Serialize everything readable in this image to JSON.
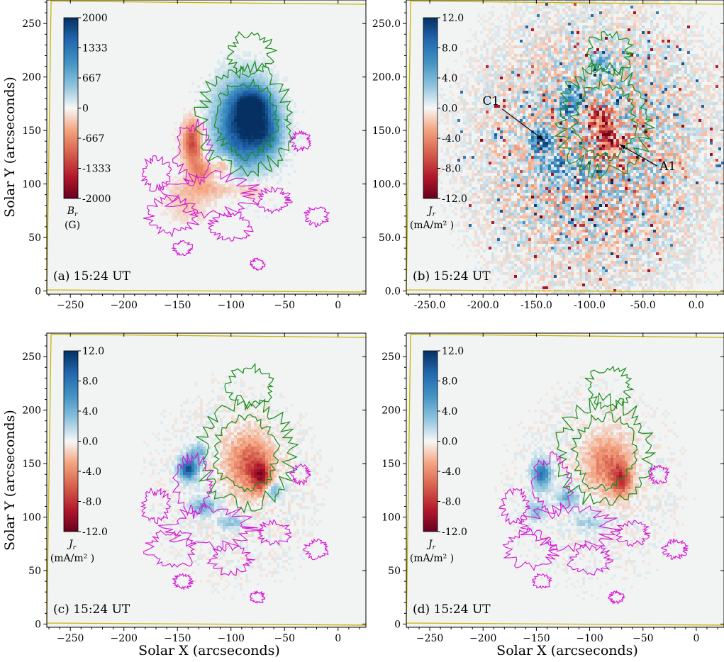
{
  "figure": {
    "x_axis_label": "Solar X (arcseconds)",
    "y_axis_label": "Solar Y (arcseconds)"
  },
  "chart_data": [
    {
      "type": "heatmap",
      "panel": "a",
      "annotation": "(a) 15:24 UT",
      "quantity": "B_r",
      "xlabel": "",
      "ylabel": "Solar Y (arcseconds)",
      "xlim": [
        -272,
        26
      ],
      "ylim": [
        -3,
        272
      ],
      "x_ticks": [
        -250,
        -200,
        -150,
        -100,
        -50,
        0
      ],
      "x_tick_labels": [
        "−250",
        "−200",
        "−150",
        "−100",
        "−50",
        "0"
      ],
      "y_ticks": [
        0,
        50,
        100,
        150,
        200,
        250
      ],
      "y_tick_labels": [
        "0",
        "50",
        "100",
        "150",
        "200",
        "250"
      ],
      "colorbar": {
        "range": [
          -2000,
          2000
        ],
        "tick_labels": [
          "2000",
          "1333",
          "667",
          "0",
          "-667",
          "-1333",
          "-2000"
        ],
        "label": "B_r",
        "unit": "(G)"
      },
      "cmap": "RdBu",
      "contours": [
        "positive polarity (green)",
        "negative polarity (magenta)"
      ],
      "blobs": [
        {
          "x": -88,
          "y": 155,
          "sx": 17,
          "sy": 26,
          "v": 1.0
        },
        {
          "x": -78,
          "y": 175,
          "sx": 12,
          "sy": 10,
          "v": 0.55
        },
        {
          "x": -66,
          "y": 148,
          "sx": 10,
          "sy": 14,
          "v": 0.45
        },
        {
          "x": -136,
          "y": 138,
          "sx": 6,
          "sy": 14,
          "v": -0.6
        },
        {
          "x": -128,
          "y": 112,
          "sx": 8,
          "sy": 8,
          "v": -0.35
        },
        {
          "x": -106,
          "y": 117,
          "sx": 6,
          "sy": 6,
          "v": -0.35
        },
        {
          "x": -120,
          "y": 95,
          "sx": 22,
          "sy": 6,
          "v": -0.18
        },
        {
          "x": -140,
          "y": 80,
          "sx": 14,
          "sy": 10,
          "v": -0.14
        },
        {
          "x": -80,
          "y": 95,
          "sx": 10,
          "sy": 6,
          "v": -0.15
        }
      ]
    },
    {
      "type": "heatmap",
      "panel": "b",
      "annotation": "(b) 15:24 UT",
      "quantity": "J_r",
      "xlabel": "",
      "ylabel": "",
      "xlim": [
        -272,
        26
      ],
      "ylim": [
        -3,
        272
      ],
      "x_ticks": [
        -250,
        -200,
        -150,
        -100,
        -50,
        0
      ],
      "x_tick_labels": [
        "-250.0",
        "-200.0",
        "-150.0",
        "-100.0",
        "-50.0",
        "0.0"
      ],
      "y_ticks": [
        0,
        50,
        100,
        150,
        200,
        250
      ],
      "y_tick_labels": [
        "0.0",
        "50.0",
        "100.0",
        "150.0",
        "200.0",
        "250.0"
      ],
      "colorbar": {
        "range": [
          -12,
          12
        ],
        "tick_labels": [
          "12.0",
          "8.0",
          "4.0",
          "0.0",
          "-4.0",
          "-8.0",
          "-12.0"
        ],
        "label": "J_r",
        "unit": "(mA/m² )"
      },
      "cmap": "RdBu",
      "contours": [
        "positive polarity (green)"
      ],
      "arrows": [
        {
          "label": "C1",
          "from": [
            -182,
            170
          ],
          "to": [
            -143,
            141
          ]
        },
        {
          "label": "A1",
          "from": [
            -37,
            117
          ],
          "to": [
            -72,
            137
          ]
        }
      ],
      "blobs": [
        {
          "x": -82,
          "y": 145,
          "sx": 10,
          "sy": 14,
          "v": -0.8
        },
        {
          "x": -95,
          "y": 165,
          "sx": 12,
          "sy": 8,
          "v": -0.35
        },
        {
          "x": -146,
          "y": 140,
          "sx": 6,
          "sy": 8,
          "v": 0.9
        },
        {
          "x": -115,
          "y": 175,
          "sx": 10,
          "sy": 10,
          "v": 0.55
        },
        {
          "x": -125,
          "y": 115,
          "sx": 14,
          "sy": 8,
          "v": 0.45
        },
        {
          "x": -72,
          "y": 160,
          "sx": 6,
          "sy": 12,
          "v": 0.4
        },
        {
          "x": -90,
          "y": 210,
          "sx": 10,
          "sy": 10,
          "v": 0.3
        }
      ]
    },
    {
      "type": "heatmap",
      "panel": "c",
      "annotation": "(c) 15:24 UT",
      "quantity": "J_r",
      "xlabel": "Solar X (arcseconds)",
      "ylabel": "Solar Y (arcseconds)",
      "xlim": [
        -272,
        26
      ],
      "ylim": [
        -3,
        272
      ],
      "x_ticks": [
        -250,
        -200,
        -150,
        -100,
        -50,
        0
      ],
      "x_tick_labels": [
        "−250",
        "−200",
        "−150",
        "−100",
        "−50",
        "0"
      ],
      "y_ticks": [
        0,
        50,
        100,
        150,
        200,
        250
      ],
      "y_tick_labels": [
        "0",
        "50",
        "100",
        "150",
        "200",
        "250"
      ],
      "colorbar": {
        "range": [
          -12,
          12
        ],
        "tick_labels": [
          "12.0",
          "8.0",
          "4.0",
          "0.0",
          "-4.0",
          "-8.0",
          "-12.0"
        ],
        "label": "J_r",
        "unit": "(mA/m² )"
      },
      "cmap": "RdBu",
      "contours": [
        "positive polarity (green)",
        "negative polarity (magenta)"
      ],
      "blobs": [
        {
          "x": -83,
          "y": 150,
          "sx": 14,
          "sy": 18,
          "v": -0.5
        },
        {
          "x": -72,
          "y": 138,
          "sx": 6,
          "sy": 10,
          "v": -0.6
        },
        {
          "x": -140,
          "y": 145,
          "sx": 6,
          "sy": 7,
          "v": 0.85
        },
        {
          "x": -125,
          "y": 110,
          "sx": 8,
          "sy": 6,
          "v": 0.4
        },
        {
          "x": -130,
          "y": 160,
          "sx": 6,
          "sy": 6,
          "v": 0.35
        },
        {
          "x": -100,
          "y": 95,
          "sx": 8,
          "sy": 5,
          "v": 0.25
        },
        {
          "x": -60,
          "y": 125,
          "sx": 6,
          "sy": 5,
          "v": 0.35
        }
      ]
    },
    {
      "type": "heatmap",
      "panel": "d",
      "annotation": "(d) 15:24 UT",
      "quantity": "J_r",
      "xlabel": "Solar X (arcseconds)",
      "ylabel": "",
      "xlim": [
        -272,
        26
      ],
      "ylim": [
        -3,
        272
      ],
      "x_ticks": [
        -250,
        -200,
        -150,
        -100,
        -50,
        0
      ],
      "x_tick_labels": [
        "−250",
        "−200",
        "−150",
        "−100",
        "−50",
        "0"
      ],
      "y_ticks": [
        0,
        50,
        100,
        150,
        200,
        250
      ],
      "y_tick_labels": [
        "0",
        "50",
        "100",
        "150",
        "200",
        "250"
      ],
      "colorbar": {
        "range": [
          -12,
          12
        ],
        "tick_labels": [
          "12.0",
          "8.0",
          "4.0",
          "0.0",
          "-4.0",
          "-8.0",
          "-12.0"
        ],
        "label": "J_r",
        "unit": "(mA/m² )"
      },
      "cmap": "RdBu",
      "contours": [
        "positive polarity (green)",
        "negative polarity (magenta)"
      ],
      "blobs": [
        {
          "x": -83,
          "y": 150,
          "sx": 14,
          "sy": 18,
          "v": -0.4
        },
        {
          "x": -70,
          "y": 135,
          "sx": 6,
          "sy": 10,
          "v": -0.55
        },
        {
          "x": -145,
          "y": 140,
          "sx": 6,
          "sy": 9,
          "v": 0.65
        },
        {
          "x": -120,
          "y": 118,
          "sx": 8,
          "sy": 6,
          "v": 0.35
        },
        {
          "x": -150,
          "y": 105,
          "sx": 6,
          "sy": 6,
          "v": 0.3
        },
        {
          "x": -100,
          "y": 95,
          "sx": 10,
          "sy": 5,
          "v": 0.2
        }
      ]
    }
  ]
}
